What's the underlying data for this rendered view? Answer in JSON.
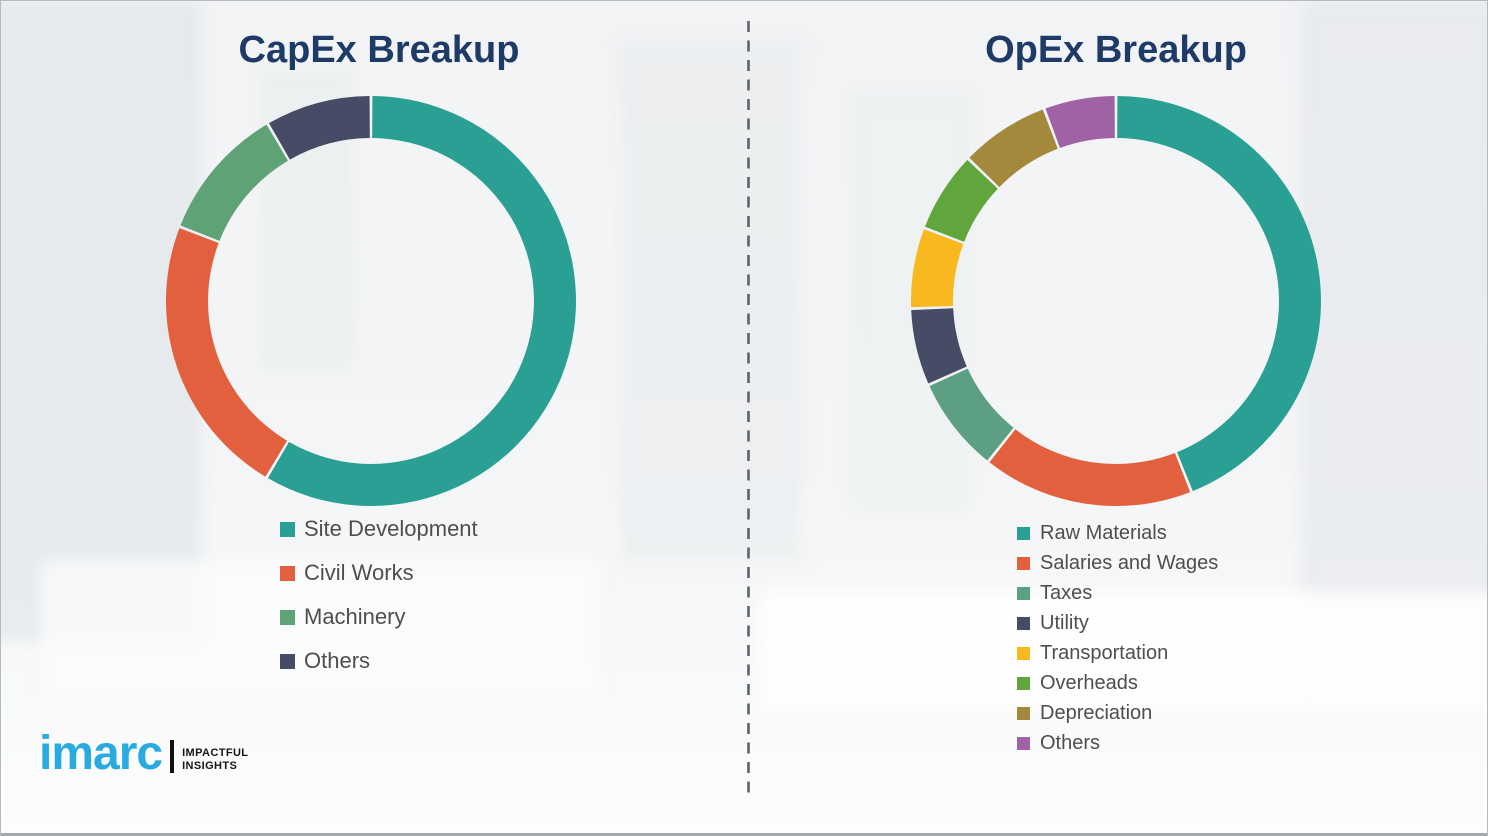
{
  "page": {
    "background_color": "#F3F4F6",
    "title_color": "#1E3A67",
    "legend_text_color": "#4E4E4E",
    "divider_color": "#5F6365"
  },
  "chart_data": [
    {
      "type": "pie",
      "subtype": "donut",
      "title": "CapEx Breakup",
      "labels": [
        "Site Development",
        "Civil Works",
        "Machinery",
        "Others"
      ],
      "values": [
        58.5,
        22.4,
        10.7,
        8.4
      ],
      "colors": [
        "#2AA094",
        "#E2603D",
        "#5FA276",
        "#474C66"
      ],
      "unit": "percent",
      "start_angle_deg": 0,
      "direction": "clockwise",
      "hole_ratio": 0.795,
      "legend_position": "below-left"
    },
    {
      "type": "pie",
      "subtype": "donut",
      "title": "OpEx Breakup",
      "labels": [
        "Raw Materials",
        "Salaries and Wages",
        "Taxes",
        "Utility",
        "Transportation",
        "Overheads",
        "Depreciation",
        "Others"
      ],
      "values": [
        44.0,
        16.7,
        7.6,
        6.1,
        6.4,
        6.4,
        7.1,
        5.7
      ],
      "colors": [
        "#2AA094",
        "#E2603D",
        "#5C9F82",
        "#474C66",
        "#F8B81F",
        "#61A63C",
        "#A4893D",
        "#9F63A5"
      ],
      "unit": "percent",
      "start_angle_deg": 0,
      "direction": "clockwise",
      "hole_ratio": 0.795,
      "legend_position": "below-left"
    }
  ],
  "logo": {
    "wordmark": "imarc",
    "wordmark_color": "#29ABE2",
    "tagline": [
      "IMPACTFUL",
      "INSIGHTS"
    ]
  }
}
